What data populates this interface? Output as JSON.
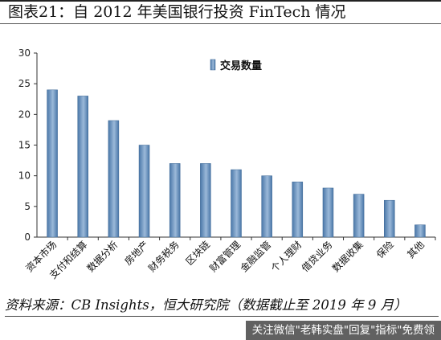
{
  "figure": {
    "title": "图表21：自 2012 年美国银行投资 FinTech 情况",
    "source": "资料来源：CB Insights，恒大研究院（数据截止至 2019 年 9 月）",
    "watermark": "关注微信\"老韩实盘\"回复\"指标\"免费领"
  },
  "colors": {
    "bar": "#4a77a8",
    "bar_light": "#9bb9d9",
    "axis": "#333333"
  },
  "chart_data": {
    "type": "bar",
    "categories": [
      "资本市场",
      "支付和结算",
      "数据分析",
      "房地产",
      "财务税务",
      "区块链",
      "财富管理",
      "金融监管",
      "个人理财",
      "借贷业务",
      "数据收集",
      "保险",
      "其他"
    ],
    "series": [
      {
        "name": "交易数量",
        "values": [
          24,
          23,
          19,
          15,
          12,
          12,
          11,
          10,
          9,
          8,
          7,
          6,
          2
        ]
      }
    ],
    "ylim": [
      0,
      30
    ],
    "yticks": [
      0,
      5,
      10,
      15,
      20,
      25,
      30
    ],
    "grid": false,
    "legend_position": "top-center"
  }
}
